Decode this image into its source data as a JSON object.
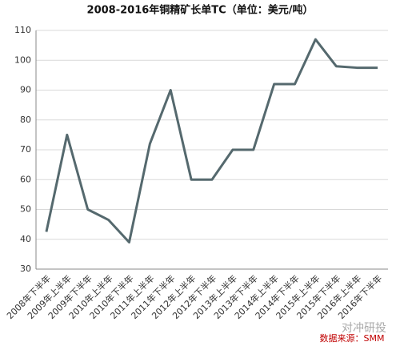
{
  "chart_data": {
    "type": "line",
    "title": "2008-2016年铜精矿长单TC（单位：美元/吨）",
    "source": "数据来源：SMM",
    "watermark": "对冲研投",
    "categories": [
      "2008年下半年",
      "2009年上半年",
      "2009年下半年",
      "2010年上半年",
      "2010年下半年",
      "2011年上半年",
      "2011年下半年",
      "2012年上半年",
      "2012年下半年",
      "2013年上半年",
      "2013年下半年",
      "2014年上半年",
      "2014年下半年",
      "2015年上半年",
      "2015年下半年",
      "2016年上半年",
      "2016年下半年"
    ],
    "values": [
      42.5,
      75,
      50,
      46.5,
      39,
      72,
      90,
      60,
      60,
      70,
      70,
      92,
      92,
      107,
      98,
      97.5,
      97.5
    ],
    "color": "#55696e",
    "ylim": [
      30,
      110
    ],
    "yticks": [
      30,
      40,
      50,
      60,
      70,
      80,
      90,
      100,
      110
    ],
    "grid": true
  }
}
